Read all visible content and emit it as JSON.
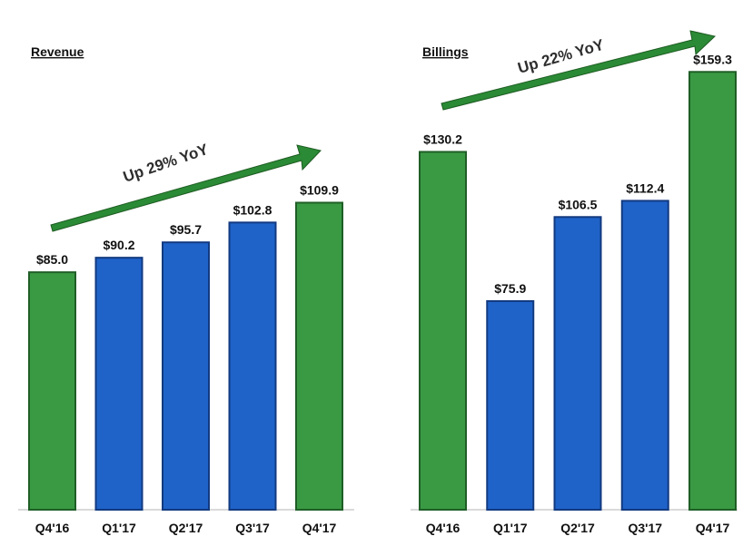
{
  "colors": {
    "green": "#3a9a44",
    "green_edge": "#1f5e26",
    "blue": "#1f63c9",
    "blue_edge": "#123a80",
    "arrow": "#2b8a35",
    "arrow_edge": "#1d5c22",
    "baseline": "#b5b5b5"
  },
  "chart_data": [
    {
      "type": "bar",
      "title": "Revenue",
      "categories": [
        "Q4'16",
        "Q1'17",
        "Q2'17",
        "Q3'17",
        "Q4'17"
      ],
      "values": [
        85.0,
        90.2,
        95.7,
        102.8,
        109.9
      ],
      "value_labels": [
        "$85.0",
        "$90.2",
        "$95.7",
        "$102.8",
        "$109.9"
      ],
      "bar_colors": [
        "green",
        "blue",
        "blue",
        "blue",
        "green"
      ],
      "ylim": [
        0,
        112
      ],
      "grid": false,
      "annotation": "Up 29% YoY"
    },
    {
      "type": "bar",
      "title": "Billings",
      "categories": [
        "Q4'16",
        "Q1'17",
        "Q2'17",
        "Q3'17",
        "Q4'17"
      ],
      "values": [
        130.2,
        75.9,
        106.5,
        112.4,
        159.3
      ],
      "value_labels": [
        "$130.2",
        "$75.9",
        "$106.5",
        "$112.4",
        "$159.3"
      ],
      "bar_colors": [
        "green",
        "blue",
        "blue",
        "blue",
        "green"
      ],
      "ylim": [
        0,
        165
      ],
      "grid": false,
      "annotation": "Up 22% YoY"
    }
  ]
}
